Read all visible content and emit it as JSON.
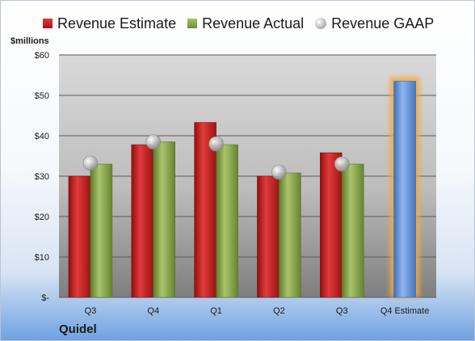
{
  "legend": {
    "estimate": "Revenue Estimate",
    "actual": "Revenue Actual",
    "gaap": "Revenue GAAP"
  },
  "units": "$millions",
  "company": "Quidel",
  "chart_data": {
    "type": "bar",
    "categories": [
      "Q3",
      "Q4",
      "Q1",
      "Q2",
      "Q3",
      "Q4 Estimate"
    ],
    "y_tick_labels": [
      "$-",
      "$10",
      "$20",
      "$30",
      "$40",
      "$50",
      "$60"
    ],
    "ylim": [
      0,
      60
    ],
    "grid": true,
    "legend_position": "top",
    "series": [
      {
        "name": "Revenue Estimate",
        "color": "#c62828",
        "values": [
          30.0,
          37.8,
          43.3,
          30.0,
          35.8,
          null
        ]
      },
      {
        "name": "Revenue Actual",
        "color": "#8aa64c",
        "values": [
          33.0,
          38.5,
          37.8,
          30.8,
          33.0,
          null
        ]
      },
      {
        "name": "Revenue GAAP",
        "color": "#a8a8a8",
        "type": "scatter",
        "values": [
          33.2,
          38.5,
          38.0,
          31.0,
          33.0,
          null
        ]
      },
      {
        "name": "Q4 Estimate",
        "color": "#5b8fd6",
        "values": [
          null,
          null,
          null,
          null,
          null,
          53.5
        ]
      }
    ]
  }
}
